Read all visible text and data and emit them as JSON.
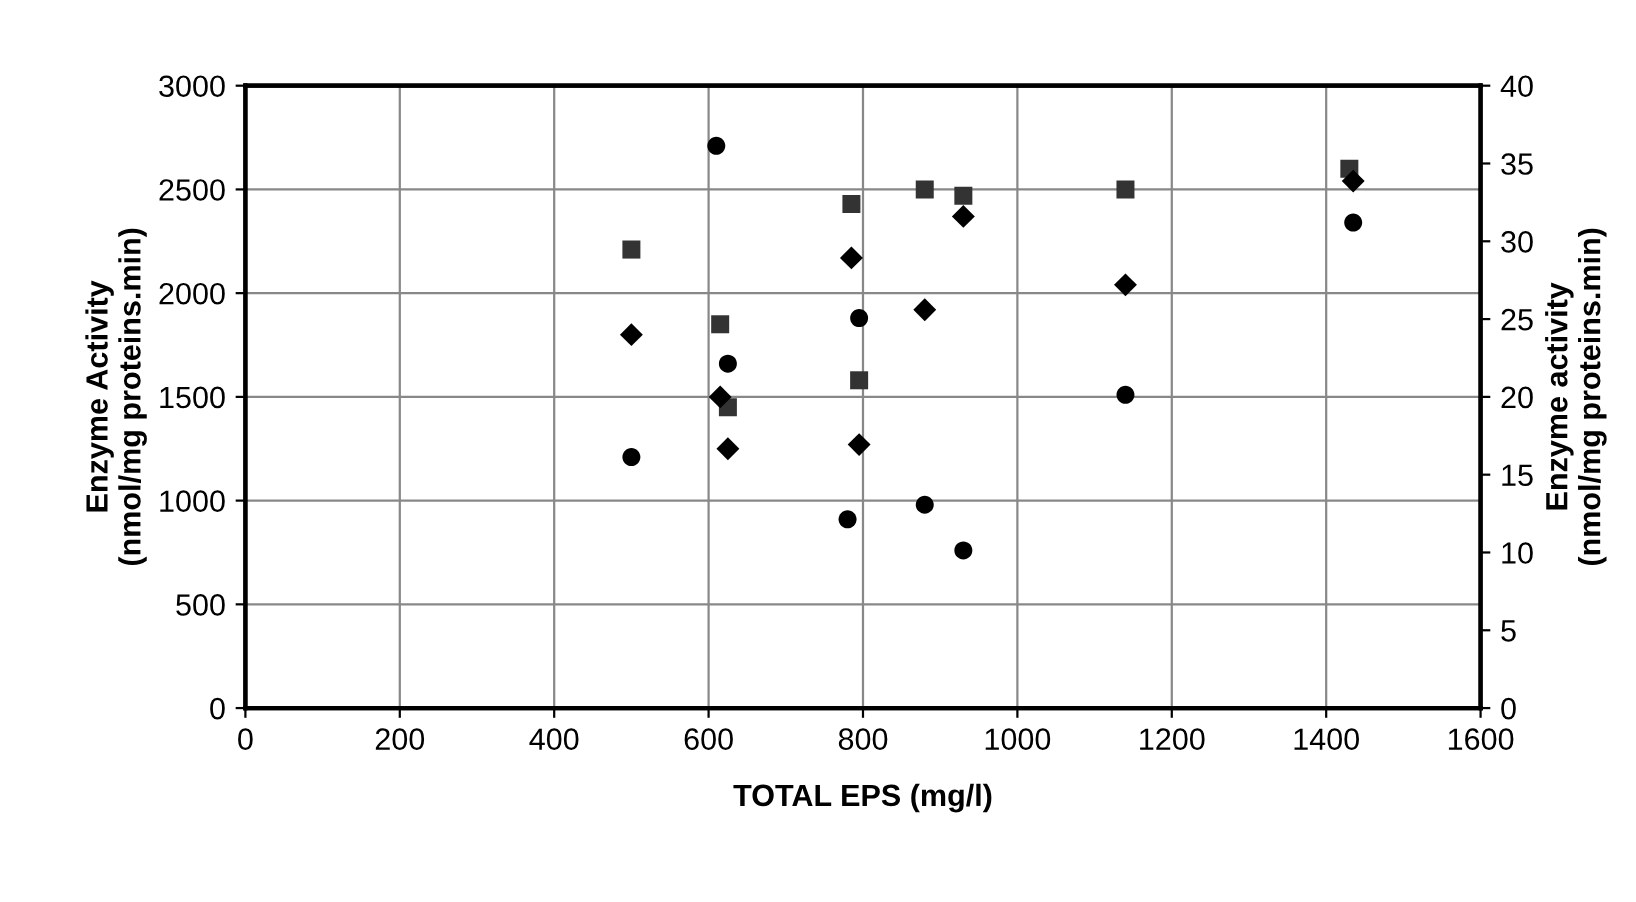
{
  "chart_data": {
    "type": "scatter",
    "xlabel": "TOTAL EPS (mg/l)",
    "ylabel": "Enzyme Activity\n(nmol/mg proteins.min)",
    "y2label": "Enzyme activity\n(nmol/mg proteins.min)",
    "xlim": [
      0,
      1600
    ],
    "xticks": [
      0,
      200,
      400,
      600,
      800,
      1000,
      1200,
      1400,
      1600
    ],
    "ylim": [
      0,
      3000
    ],
    "yticks": [
      0,
      500,
      1000,
      1500,
      2000,
      2500,
      3000
    ],
    "y2lim": [
      0,
      40
    ],
    "y2ticks": [
      0,
      5,
      10,
      15,
      20,
      25,
      30,
      35,
      40
    ],
    "grid": true,
    "legend": false,
    "series": [
      {
        "marker": "square",
        "color": "#333333",
        "x": [
          500,
          615,
          625,
          785,
          795,
          880,
          930,
          1140,
          1430
        ],
        "values": [
          2210,
          1850,
          1450,
          2430,
          1580,
          2500,
          2470,
          2500,
          2600
        ]
      },
      {
        "marker": "diamond",
        "color": "#000000",
        "x": [
          500,
          615,
          625,
          785,
          795,
          880,
          930,
          1140,
          1435
        ],
        "values": [
          1800,
          1500,
          1250,
          2170,
          1270,
          1920,
          2370,
          2040,
          2540
        ]
      },
      {
        "marker": "circle",
        "color": "#000000",
        "x": [
          500,
          610,
          625,
          780,
          795,
          880,
          930,
          1140,
          1435
        ],
        "values": [
          1210,
          2710,
          1660,
          910,
          1880,
          980,
          760,
          1510,
          2340
        ]
      }
    ]
  }
}
